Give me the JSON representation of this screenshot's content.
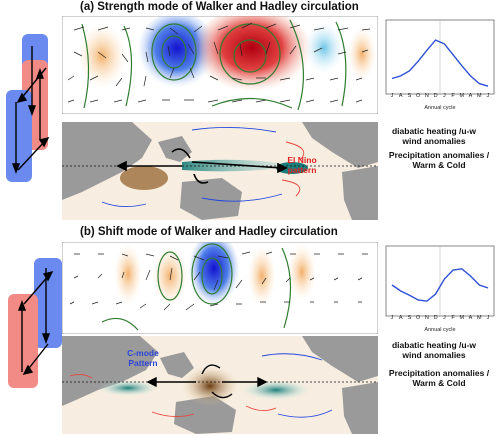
{
  "panel_a": {
    "title": "(a) Strength mode of Walker and Hadley circulation",
    "annual_cycle_months": [
      "J",
      "A",
      "S",
      "O",
      "N",
      "D",
      "J",
      "F",
      "M",
      "A",
      "M",
      "J"
    ],
    "annual_cycle_label": "Annual cycle",
    "annual_cycle_values": [
      0.18,
      0.22,
      0.3,
      0.45,
      0.62,
      0.78,
      0.72,
      0.55,
      0.38,
      0.22,
      0.1,
      0.06
    ],
    "heating_label": "diabatic heating /u-w wind anomalies",
    "precip_label": "Precipitation anomalies / Warm & Cold",
    "pattern_tag": "El Nino pattern"
  },
  "panel_b": {
    "title": "(b) Shift mode of Walker and Hadley circulation",
    "annual_cycle_months": [
      "J",
      "A",
      "S",
      "O",
      "N",
      "D",
      "J",
      "F",
      "M",
      "A",
      "M",
      "J"
    ],
    "annual_cycle_label": "Annual cycle",
    "annual_cycle_values": [
      0.45,
      0.35,
      0.28,
      0.2,
      0.18,
      0.3,
      0.55,
      0.7,
      0.72,
      0.6,
      0.45,
      0.4
    ],
    "heating_label": "diabatic heating /u-w wind anomalies",
    "precip_label": "Precipitation anomalies / Warm & Cold",
    "pattern_tag": "C-mode Pattern"
  },
  "colors": {
    "warm": "#e8433a",
    "cold": "#2448e0",
    "cell_red": "#f28a85",
    "cell_blue": "#6a8af0",
    "contour_green": "#2f7d2f",
    "land": "#9a9a9a",
    "line_blue": "#2d4fd6"
  }
}
